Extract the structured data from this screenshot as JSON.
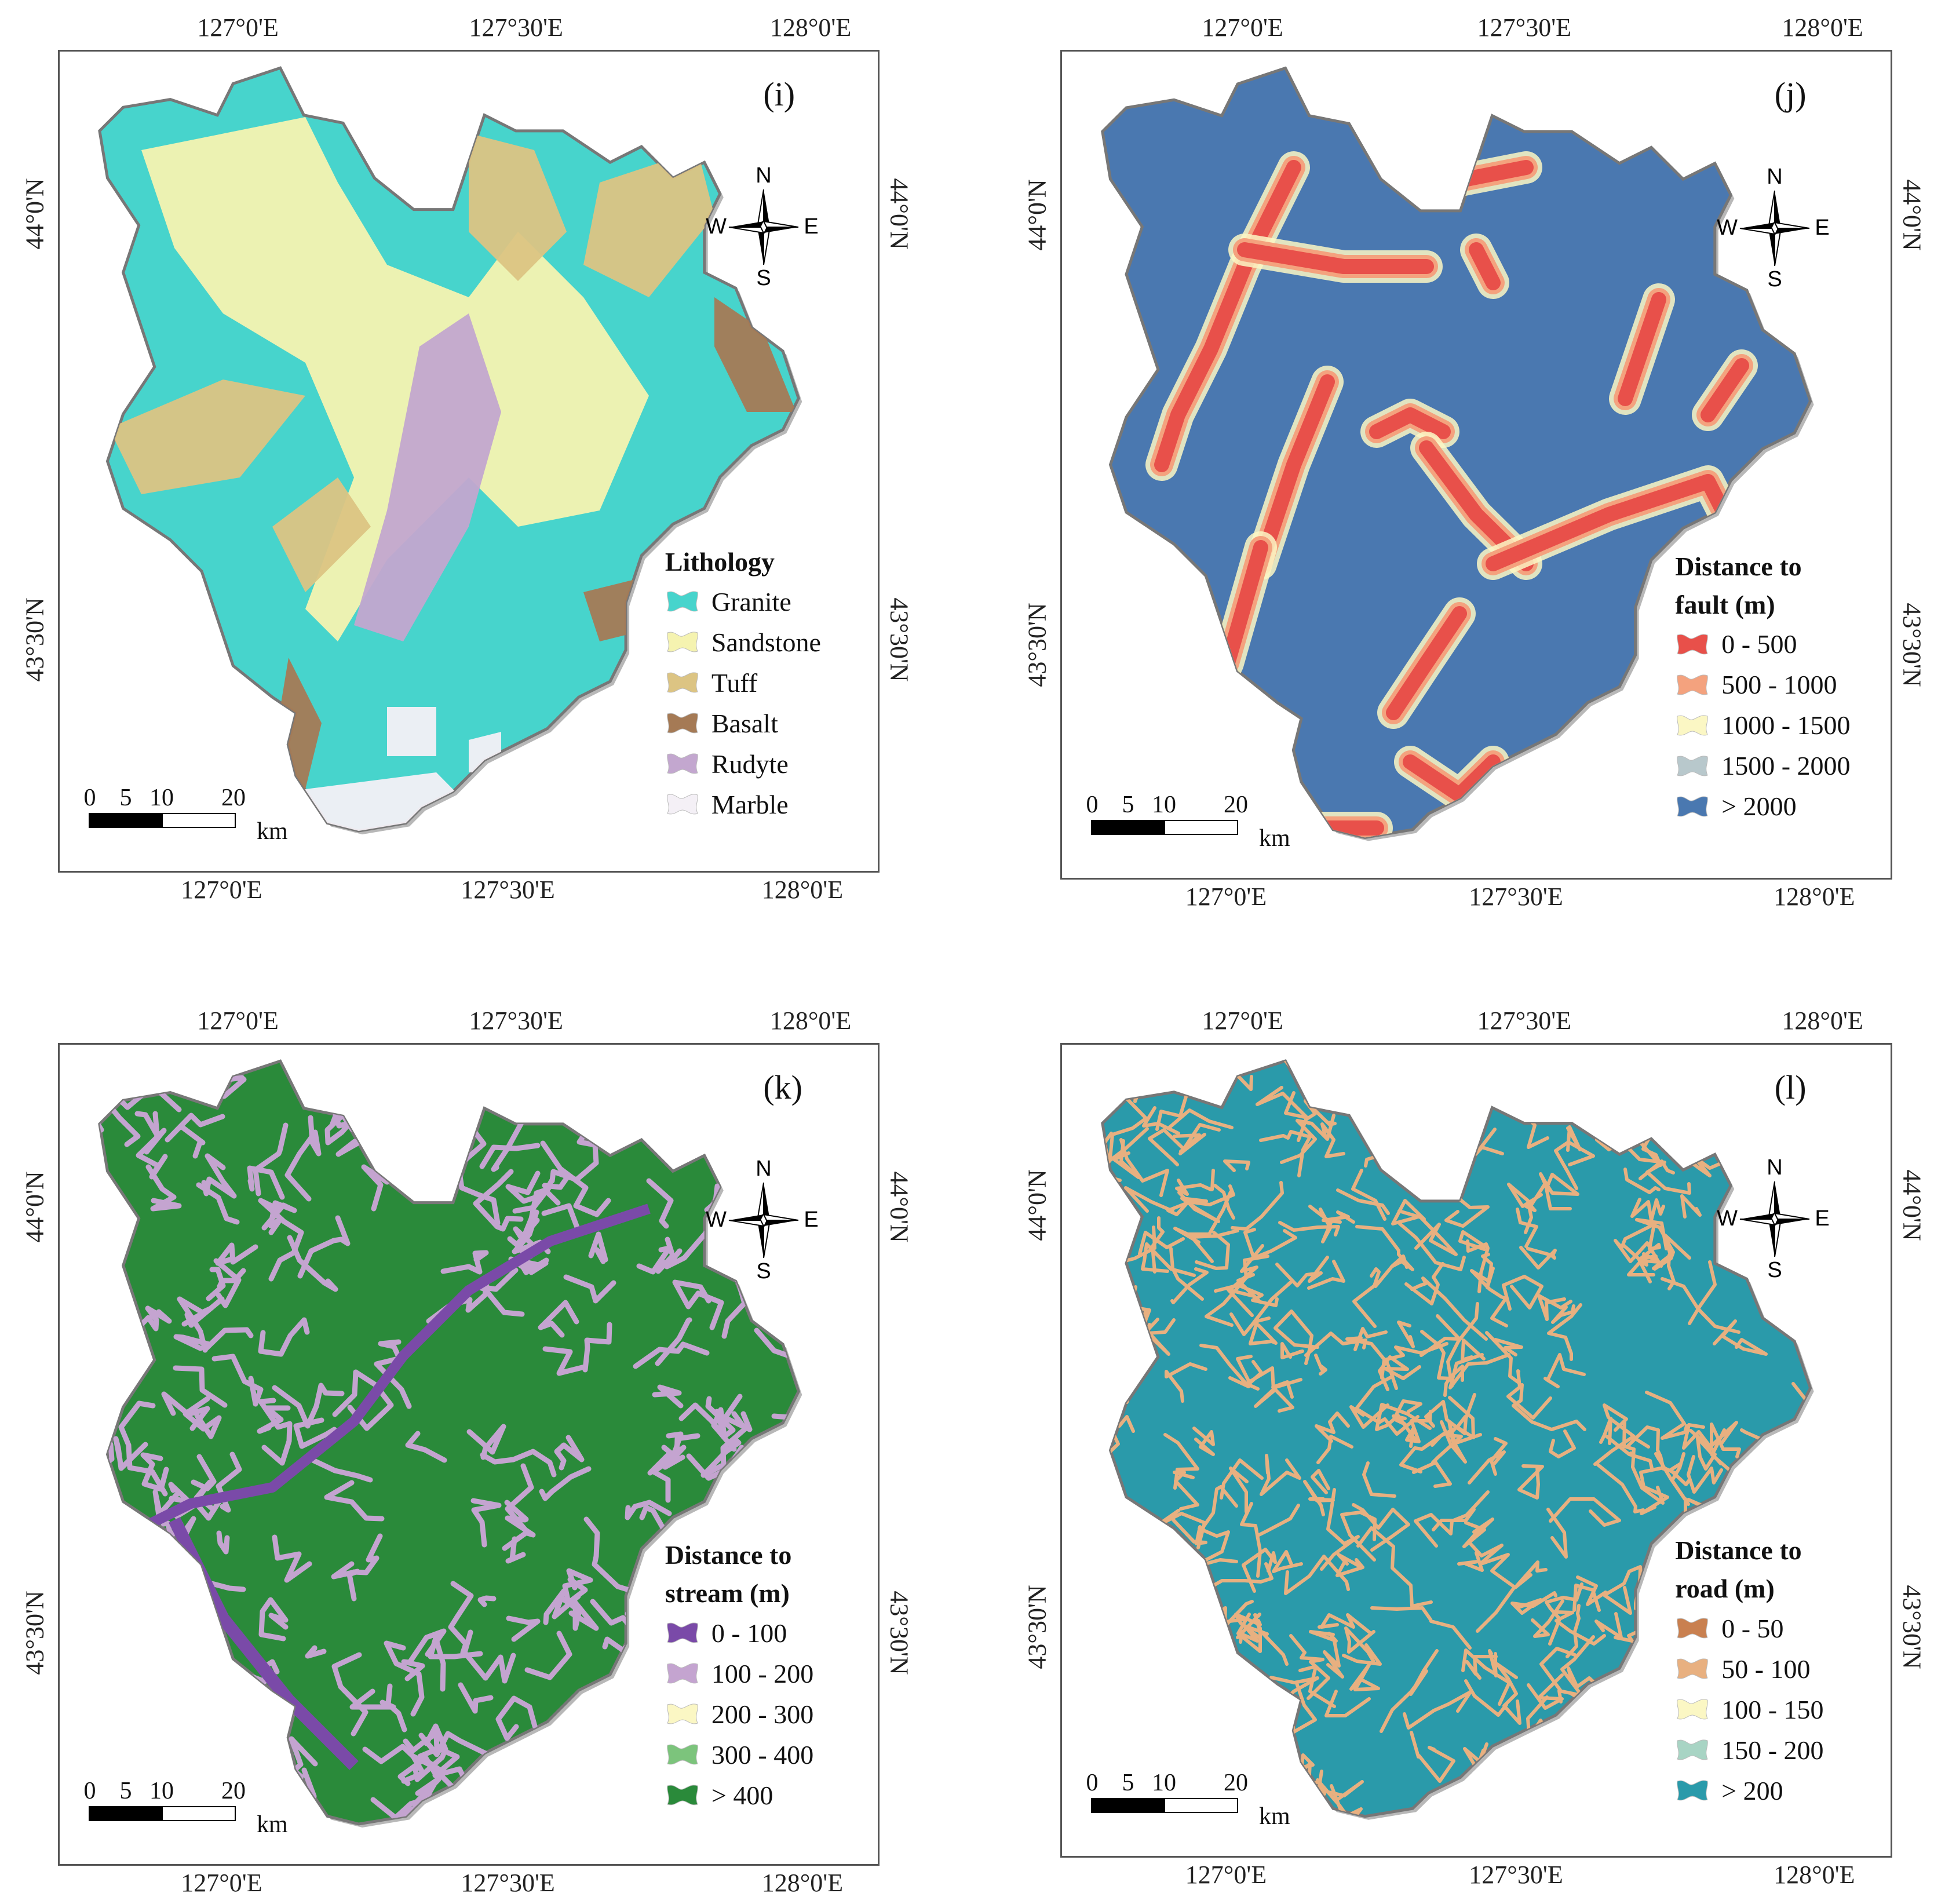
{
  "coords": {
    "lon": [
      "127°0'E",
      "127°30'E",
      "128°0'E"
    ],
    "lat_top": "44°0'N",
    "lat_bottom": "43°30'N"
  },
  "compass": {
    "n": "N",
    "s": "S",
    "e": "E",
    "w": "W"
  },
  "scale": {
    "ticks": [
      "0",
      "5",
      "10",
      "20"
    ],
    "unit": "km"
  },
  "panels": {
    "i": {
      "label": "(i)",
      "legend_title": "Lithology",
      "fill": "#47d4cc",
      "items": [
        {
          "label": "Granite",
          "color": "#47d4cc"
        },
        {
          "label": "Sandstone",
          "color": "#f5f3b0"
        },
        {
          "label": "Tuff",
          "color": "#dcc483"
        },
        {
          "label": "Basalt",
          "color": "#a57a55"
        },
        {
          "label": "Rudyte",
          "color": "#c3a7cf"
        },
        {
          "label": "Marble",
          "color": "#f4f0f6"
        }
      ]
    },
    "j": {
      "label": "(j)",
      "legend_title_1": "Distance to",
      "legend_title_2": "fault (m)",
      "fill": "#4a78b0",
      "items": [
        {
          "label": "0 - 500",
          "color": "#e8504a"
        },
        {
          "label": "500 - 1000",
          "color": "#f4a27e"
        },
        {
          "label": "1000 - 1500",
          "color": "#fbf7c4"
        },
        {
          "label": "1500 - 2000",
          "color": "#b8c8cc"
        },
        {
          "label": "> 2000",
          "color": "#4a78b0"
        }
      ]
    },
    "k": {
      "label": "(k)",
      "legend_title_1": "Distance to",
      "legend_title_2": "stream (m)",
      "fill": "#2a8a3a",
      "items": [
        {
          "label": "0 - 100",
          "color": "#7a4aa8"
        },
        {
          "label": "100 - 200",
          "color": "#c4a4d0"
        },
        {
          "label": "200 - 300",
          "color": "#fbf7c4"
        },
        {
          "label": "300 - 400",
          "color": "#7cc47c"
        },
        {
          "label": "> 400",
          "color": "#2a8a3a"
        }
      ]
    },
    "l": {
      "label": "(l)",
      "legend_title_1": "Distance to",
      "legend_title_2": "road (m)",
      "fill": "#2a9aaa",
      "items": [
        {
          "label": "0 - 50",
          "color": "#c98050"
        },
        {
          "label": "50 - 100",
          "color": "#e8b080"
        },
        {
          "label": "100 - 150",
          "color": "#fbf7c4"
        },
        {
          "label": "150 - 200",
          "color": "#a8d4c4"
        },
        {
          "label": "> 200",
          "color": "#2a9aaa"
        }
      ]
    }
  }
}
